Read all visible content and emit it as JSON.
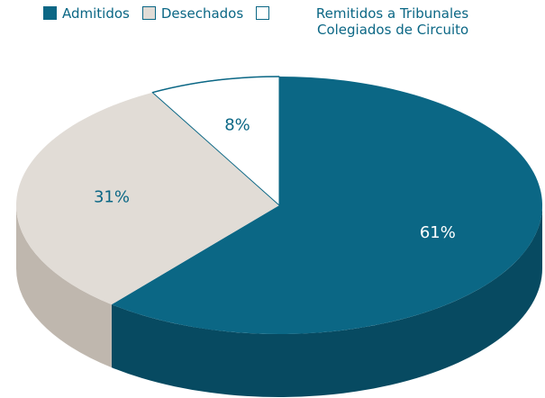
{
  "chart_data": {
    "type": "pie3d",
    "categories": [
      "Admitidos",
      "Desechados",
      "Remitidos a Tribunales Colegiados de Circuito"
    ],
    "values": [
      61,
      31,
      8
    ],
    "value_labels": [
      "61%",
      "31%",
      "8%"
    ],
    "colors": [
      "#0b6785",
      "#e1dcd6",
      "#ffffff"
    ],
    "side_colors": [
      "#074a61",
      "#bfb7ae",
      "#e8e8e8"
    ],
    "label_colors": [
      "#ffffff",
      "#0b6785",
      "#0b6785"
    ],
    "legend": "top"
  }
}
